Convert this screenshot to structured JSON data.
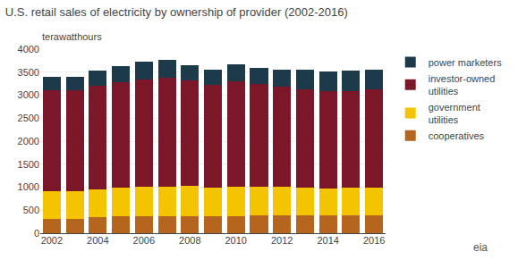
{
  "chart_data": {
    "type": "bar",
    "stacked": true,
    "title": "U.S. retail sales of electricity by ownership of provider (2002-2016)",
    "ylabel": "terawatthours",
    "annotations": [
      "eia"
    ],
    "categories": [
      "2002",
      null,
      "2004",
      null,
      "2006",
      null,
      "2008",
      null,
      "2010",
      null,
      "2012",
      null,
      "2014",
      null,
      "2016"
    ],
    "series": [
      {
        "name": "cooperatives",
        "color": "#b5651d",
        "values": [
          320,
          320,
          340,
          360,
          365,
          370,
          375,
          370,
          375,
          380,
          390,
          385,
          385,
          385,
          385
        ]
      },
      {
        "name": "government\nutilities",
        "color": "#f5c400",
        "values": [
          595,
          590,
          615,
          635,
          640,
          645,
          645,
          630,
          640,
          625,
          615,
          605,
          595,
          600,
          605
        ]
      },
      {
        "name": "investor-owned\nutilities",
        "color": "#7b1728",
        "values": [
          2195,
          2195,
          2240,
          2285,
          2330,
          2355,
          2295,
          2225,
          2280,
          2235,
          2170,
          2145,
          2110,
          2110,
          2130
        ]
      },
      {
        "name": "power marketers",
        "color": "#1c3a4a",
        "values": [
          290,
          285,
          345,
          360,
          395,
          400,
          340,
          325,
          375,
          355,
          375,
          415,
          430,
          430,
          435
        ]
      }
    ],
    "ylim": [
      0,
      4000
    ],
    "yticks": [
      0,
      500,
      1000,
      1500,
      2000,
      2500,
      3000,
      3500,
      4000
    ],
    "grid": true,
    "legend": "right"
  }
}
